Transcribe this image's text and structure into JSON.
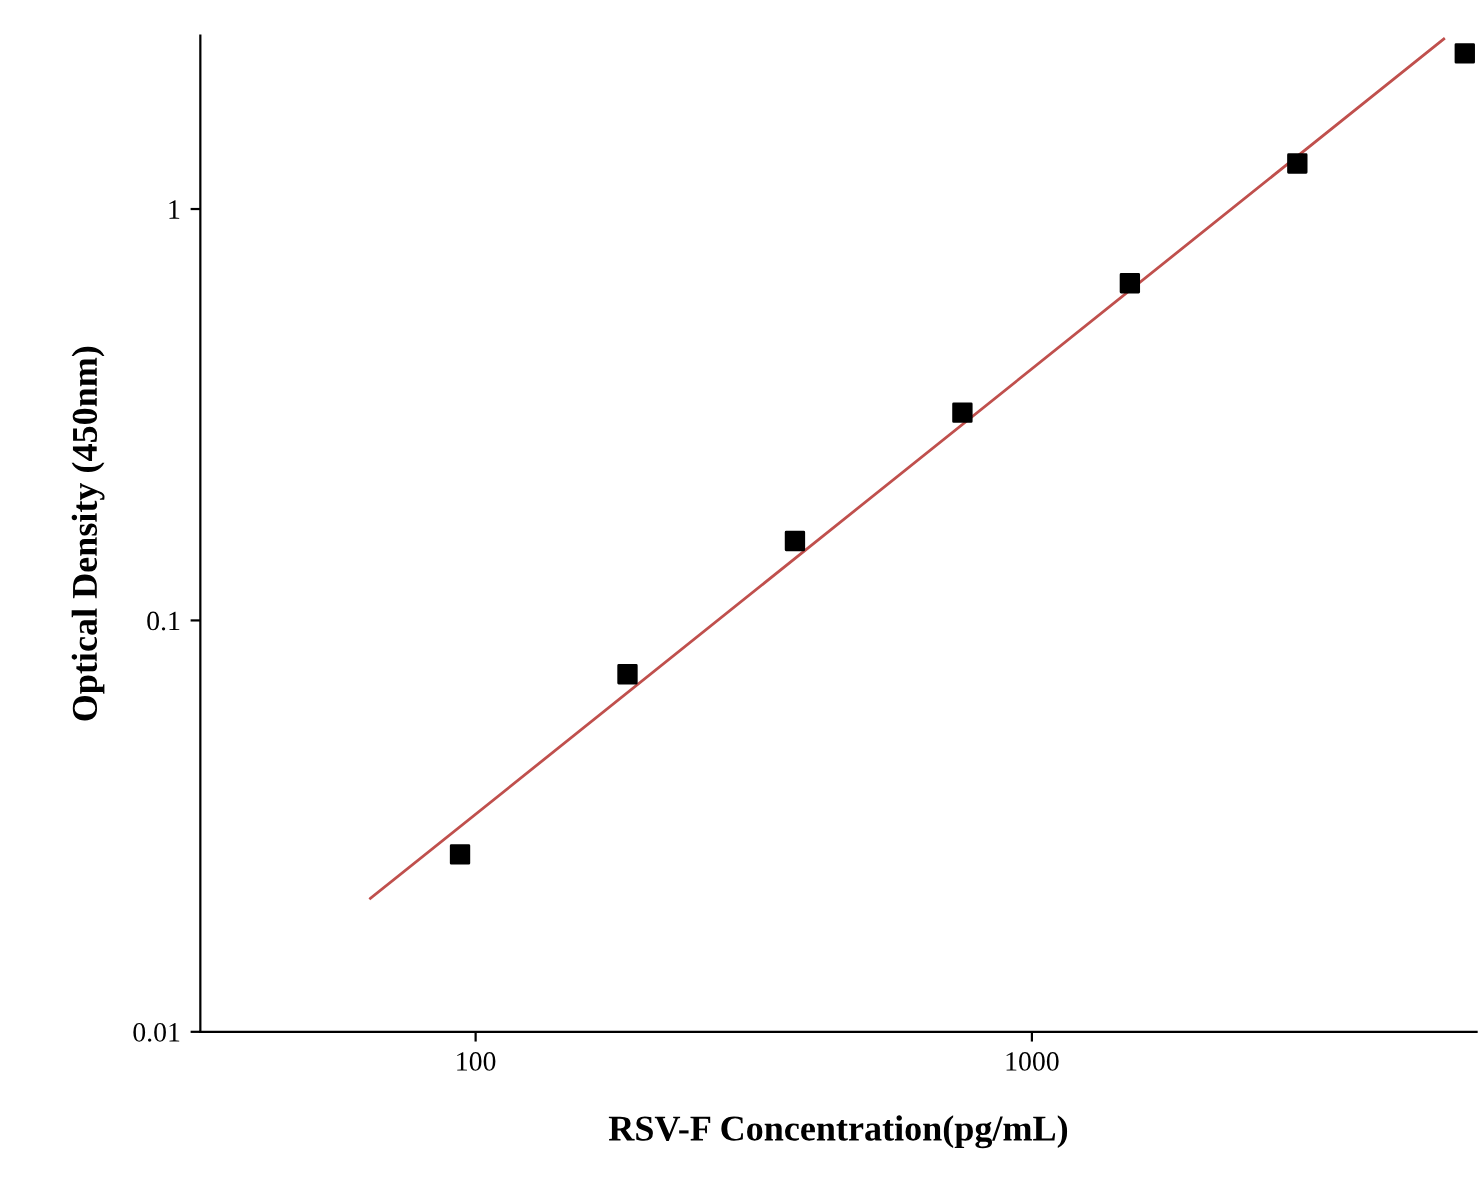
{
  "chart_data": {
    "type": "scatter",
    "xlabel": "RSV-F Concentration(pg/mL)",
    "ylabel": "Optical Density (450nm)",
    "log": "xy",
    "xlim": [
      32,
      6300
    ],
    "ylim": [
      0.01,
      2.64
    ],
    "xticks": [
      100,
      1000
    ],
    "yticks": [
      0.01,
      0.1,
      1
    ],
    "grid": false,
    "legend": false,
    "series": [
      {
        "marker": "square",
        "color": "#000000",
        "x": [
          93.75,
          187.5,
          375,
          750,
          1500,
          3000,
          6000
        ],
        "values": [
          0.027,
          0.074,
          0.156,
          0.32,
          0.66,
          1.29,
          2.39
        ]
      },
      {
        "type": "line",
        "marker": "none",
        "color": "#c0504d",
        "x": [
          64.7,
          5500
        ],
        "values": [
          0.0211,
          2.59
        ]
      }
    ]
  }
}
